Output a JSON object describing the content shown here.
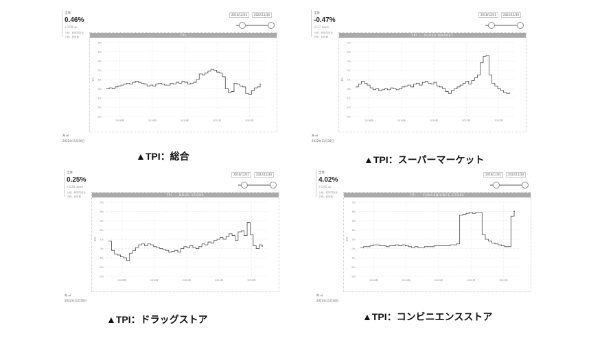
{
  "panels": [
    {
      "stat_label": "全体",
      "stat_value": "0.46%",
      "stat_change": "+0.09 up",
      "note1": "上段：前年同月比",
      "note2": "下段：前年差",
      "range_start": "2016/12/31",
      "range_end": "2022/11/30",
      "chart_title": "TPI",
      "footer1": "為 ㎡",
      "footer2": "2022年11月30日",
      "caption": "▲TPI：総合",
      "chart_data": {
        "type": "line",
        "title": "TPI",
        "xlabel": "",
        "ylabel": "TPI",
        "ylim": [
          -3,
          5
        ],
        "yticks": [
          "-3%",
          "-2%",
          "-1%",
          "0%",
          "1%",
          "2%",
          "3%",
          "4%",
          "5%"
        ],
        "xticks": [
          "2018年",
          "2019年",
          "2020年",
          "2021年",
          "2022年"
        ],
        "series": [
          {
            "name": "",
            "values": [
              0.0,
              0.1,
              0.0,
              0.2,
              0.3,
              0.4,
              0.5,
              0.6,
              0.5,
              0.7,
              0.8,
              0.7,
              0.6,
              0.5,
              0.3,
              0.4,
              0.3,
              0.5,
              0.6,
              0.5,
              0.4,
              0.4,
              0.6,
              0.5,
              0.7,
              0.6,
              0.8,
              0.7,
              0.5,
              0.6,
              0.7,
              1.0,
              1.6,
              1.5,
              1.7,
              1.9,
              2.1,
              2.0,
              1.8,
              1.7,
              1.3,
              0.0,
              -0.4,
              -0.3,
              0.6,
              0.5,
              0.3,
              0.2,
              -0.5,
              -0.6,
              -0.2,
              0.1,
              0.2,
              0.5
            ]
          }
        ]
      }
    },
    {
      "stat_label": "全体",
      "stat_value": "-0.47%",
      "stat_change": "-0.27 down",
      "note1": "上段：前年同月比",
      "note2": "下段：前年差",
      "range_start": "2016/12/31",
      "range_end": "2022/11/30",
      "chart_title": "TPI － SUPER MARKET",
      "footer1": "為 ㎡",
      "footer2": "2022年11月30日",
      "caption": "▲TPI：スーパーマーケット",
      "chart_data": {
        "type": "line",
        "title": "TPI － SUPER MARKET",
        "xlabel": "",
        "ylabel": "TPI",
        "ylim": [
          -3,
          5
        ],
        "yticks": [
          "-3%",
          "-2%",
          "-1%",
          "0%",
          "1%",
          "2%",
          "3%",
          "4%",
          "5%"
        ],
        "xticks": [
          "2018年",
          "2019年",
          "2020年",
          "2021年",
          "2022年"
        ],
        "series": [
          {
            "name": "",
            "values": [
              0.2,
              0.5,
              0.8,
              0.6,
              0.4,
              0.1,
              -0.1,
              0.0,
              -0.2,
              -0.1,
              0.0,
              -0.1,
              0.1,
              0.0,
              -0.1,
              0.0,
              0.2,
              0.3,
              0.4,
              0.2,
              0.5,
              0.6,
              0.4,
              0.7,
              0.8,
              0.6,
              0.5,
              0.7,
              0.3,
              0.2,
              0.0,
              -0.3,
              -0.5,
              -0.2,
              0.0,
              0.2,
              0.4,
              0.6,
              0.8,
              0.5,
              0.9,
              1.2,
              1.5,
              2.8,
              3.5,
              3.6,
              1.5,
              0.6,
              0.3,
              0.0,
              -0.2,
              -0.4,
              -0.5,
              -0.47
            ]
          }
        ]
      }
    },
    {
      "stat_label": "全体",
      "stat_value": "0.25%",
      "stat_change": "+0.26 down",
      "note1": "上段：前年同月比",
      "note2": "下段：前年差",
      "range_start": "2016/12/31",
      "range_end": "2022/11/30",
      "chart_title": "TPI － DRUG STORE",
      "footer1": "為 ㎡",
      "footer2": "2022年11月30日",
      "caption": "▲TPI：ドラッグストア",
      "chart_data": {
        "type": "line",
        "title": "TPI － DRUG STORE",
        "xlabel": "",
        "ylabel": "TPI",
        "ylim": [
          -3,
          5
        ],
        "yticks": [
          "-3%",
          "-2%",
          "-1%",
          "0%",
          "1%",
          "2%",
          "3%",
          "4%",
          "5%"
        ],
        "xticks": [
          "2018年",
          "2019年",
          "2020年",
          "2021年",
          "2022年"
        ],
        "series": [
          {
            "name": "",
            "values": [
              0.8,
              -0.2,
              -0.6,
              -0.7,
              -0.9,
              -1.0,
              -1.3,
              -0.5,
              -0.2,
              0.1,
              0.4,
              0.5,
              0.3,
              0.5,
              0.4,
              0.2,
              0.1,
              0.0,
              -0.1,
              -0.2,
              -0.4,
              -0.3,
              -0.2,
              -0.4,
              0.0,
              0.2,
              0.1,
              0.3,
              0.1,
              0.0,
              0.2,
              0.5,
              0.4,
              0.7,
              0.6,
              0.9,
              1.0,
              1.2,
              1.0,
              1.3,
              1.6,
              1.4,
              0.9,
              1.8,
              1.9,
              1.4,
              2.8,
              1.5,
              0.3,
              0.0,
              0.4,
              0.25
            ]
          }
        ]
      }
    },
    {
      "stat_label": "全体",
      "stat_value": "4.02%",
      "stat_change": "+0.65 up",
      "note1": "上段：前年同月比",
      "note2": "下段：前年差",
      "range_start": "2016/12/31",
      "range_end": "2022/11/30",
      "chart_title": "TPI － CONVENIENCE STORE",
      "footer1": "為 ㎡",
      "footer2": "2022年11月30日",
      "caption": "▲TPI：コンビニエンスストア",
      "chart_data": {
        "type": "line",
        "title": "TPI － CONVENIENCE STORE",
        "xlabel": "",
        "ylabel": "TPI",
        "ylim": [
          -3,
          5
        ],
        "yticks": [
          "-3%",
          "-2%",
          "-1%",
          "0%",
          "1%",
          "2%",
          "3%",
          "4%",
          "5%"
        ],
        "xticks": [
          "2018年",
          "2019年",
          "2020年",
          "2021年",
          "2022年"
        ],
        "series": [
          {
            "name": "",
            "values": [
              0.1,
              0.2,
              0.2,
              0.3,
              0.4,
              0.4,
              0.3,
              0.3,
              0.2,
              0.3,
              0.3,
              0.4,
              0.3,
              0.4,
              0.3,
              0.2,
              0.1,
              0.2,
              0.1,
              0.1,
              0.2,
              0.2,
              0.2,
              0.3,
              0.3,
              0.3,
              0.3,
              0.3,
              0.4,
              0.4,
              0.5,
              3.6,
              3.7,
              3.8,
              3.9,
              3.8,
              3.9,
              3.9,
              1.5,
              1.0,
              0.8,
              0.6,
              0.5,
              0.4,
              0.3,
              0.2,
              0.2,
              3.5,
              4.02
            ]
          }
        ]
      }
    }
  ]
}
